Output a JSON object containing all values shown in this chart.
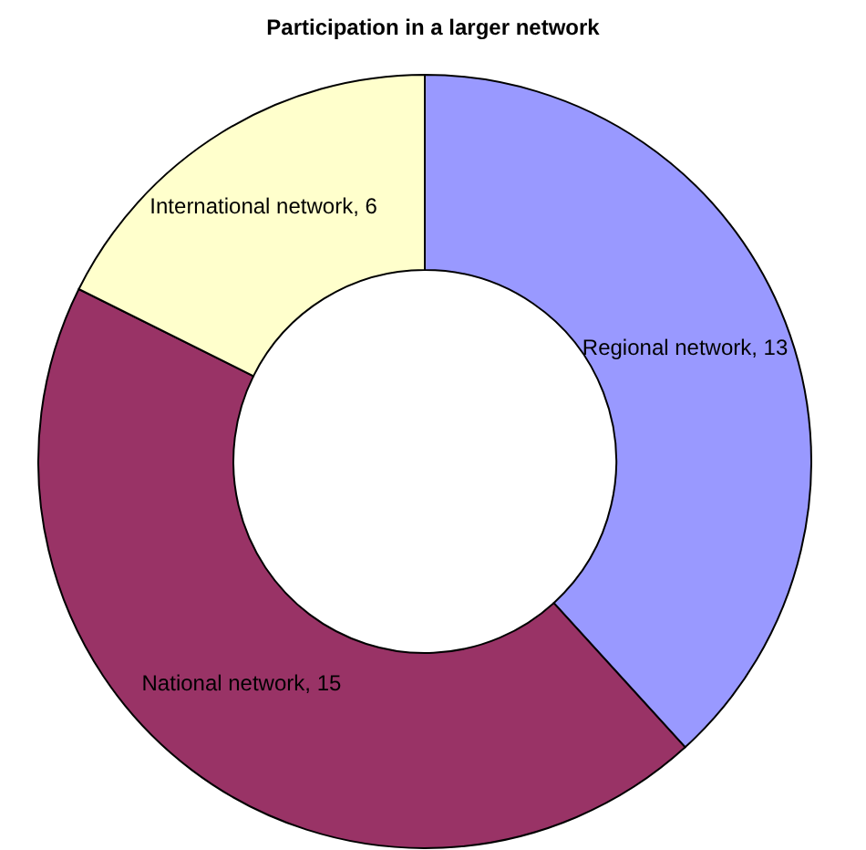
{
  "chart_data": {
    "type": "donut",
    "title": "Participation in a larger network",
    "categories": [
      "Regional network",
      "National network",
      "International network"
    ],
    "values": [
      13,
      15,
      6
    ],
    "colors": [
      "#9999ff",
      "#993366",
      "#ffffcc"
    ],
    "value_labels": [
      ", 13",
      ", 15",
      ", 6"
    ]
  }
}
